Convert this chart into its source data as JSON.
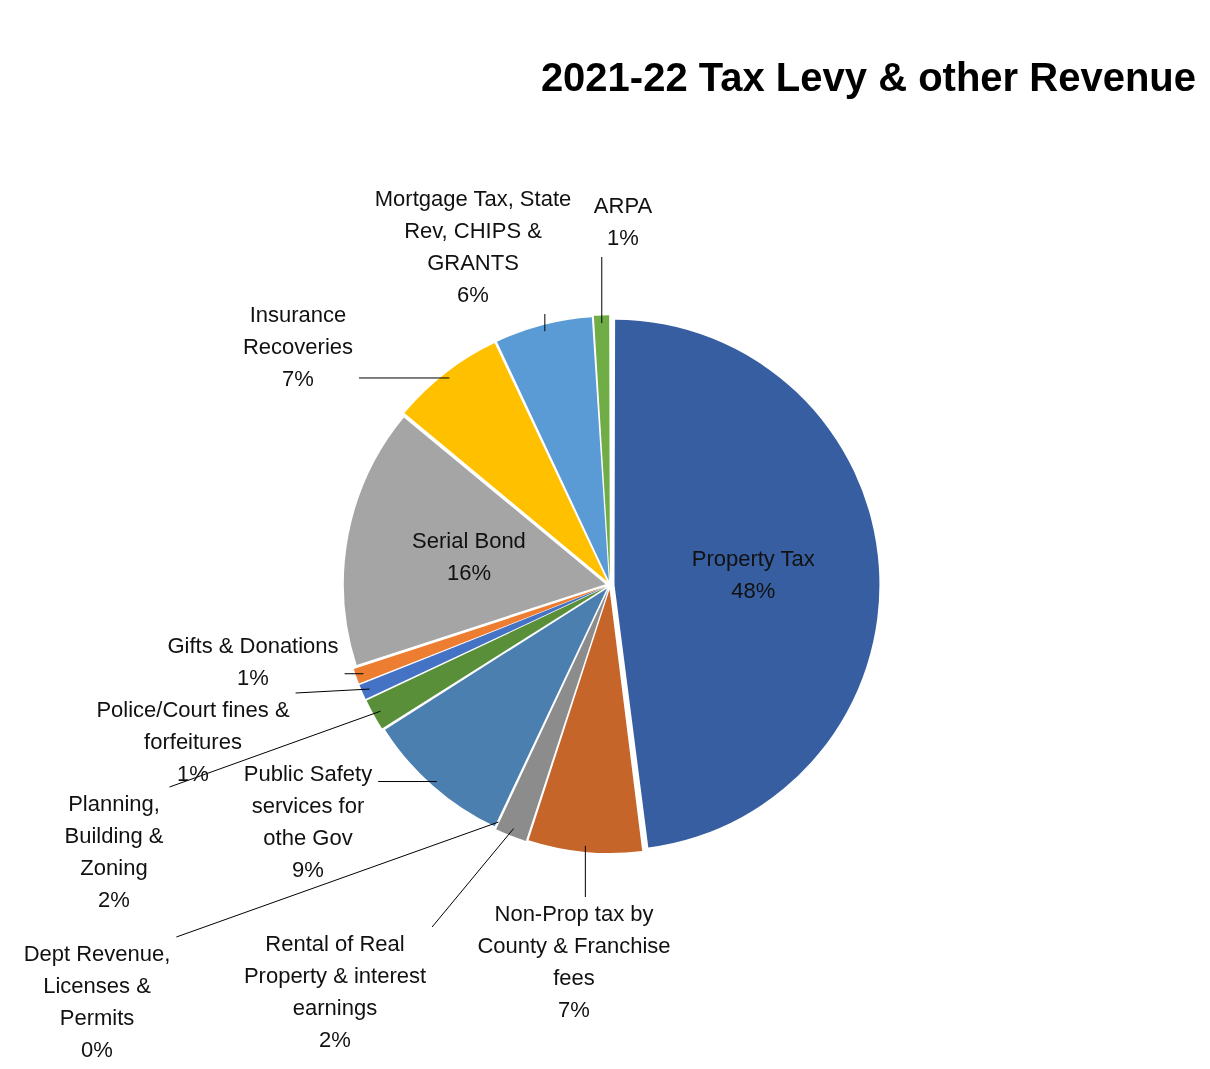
{
  "chart_data": {
    "type": "pie",
    "title": "2021-22 Tax Levy & other Revenue",
    "categories": [
      "Property Tax",
      "Non-Prop tax by County & Franchise fees",
      "Rental of Real Property & interest earnings",
      "Dept Revenue, Licenses & Permits",
      "Public Safety services for othe Gov",
      "Planning, Building & Zoning",
      "Police/Court fines & forfeitures",
      "Gifts & Donations",
      "Serial Bond",
      "Insurance Recoveries",
      "Mortgage Tax, State Rev, CHIPS & GRANTS",
      "ARPA"
    ],
    "values": [
      48,
      7,
      2,
      0,
      9,
      2,
      1,
      1,
      16,
      7,
      6,
      1
    ],
    "value_labels": [
      "48%",
      "7%",
      "2%",
      "0%",
      "9%",
      "2%",
      "1%",
      "1%",
      "16%",
      "7%",
      "6%",
      "1%"
    ],
    "colors": [
      "#375ea1",
      "#c5652a",
      "#8c8c8c",
      "#d4a017",
      "#4a7fb0",
      "#5a8f3a",
      "#4472c4",
      "#ed7d31",
      "#a5a5a5",
      "#ffc000",
      "#5b9bd5",
      "#70ad47"
    ],
    "legend": false
  }
}
